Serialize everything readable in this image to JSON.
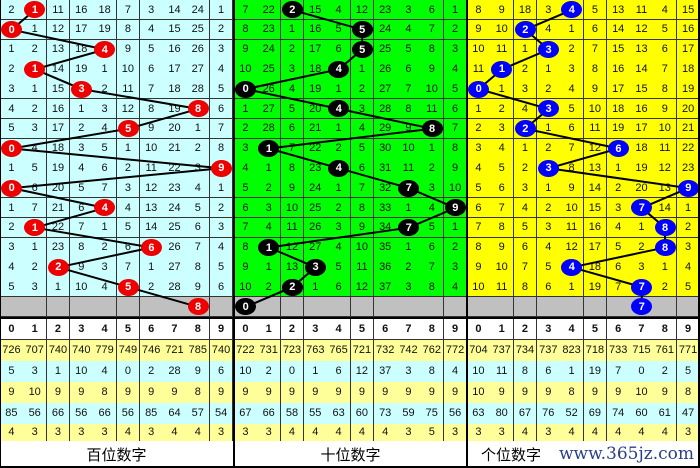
{
  "panels": [
    {
      "label": "百位数字",
      "bg": "#ccffff",
      "ball_color": "#ee0000",
      "draws": [
        1,
        0,
        4,
        1,
        3,
        8,
        5,
        0,
        9,
        0,
        4,
        1,
        6,
        2,
        5
      ],
      "next": 8,
      "rows": [
        [
          2,
          0,
          11,
          16,
          18,
          7,
          3,
          14,
          24,
          1
        ],
        [
          0,
          1,
          12,
          17,
          19,
          8,
          4,
          15,
          25,
          2
        ],
        [
          1,
          2,
          13,
          18,
          0,
          9,
          5,
          16,
          26,
          3
        ],
        [
          2,
          0,
          14,
          19,
          1,
          10,
          6,
          17,
          27,
          4
        ],
        [
          3,
          1,
          15,
          0,
          2,
          11,
          7,
          18,
          28,
          5
        ],
        [
          4,
          2,
          16,
          1,
          3,
          12,
          8,
          19,
          0,
          6
        ],
        [
          5,
          3,
          17,
          2,
          4,
          0,
          9,
          20,
          1,
          7
        ],
        [
          0,
          4,
          18,
          3,
          5,
          1,
          10,
          21,
          2,
          8
        ],
        [
          1,
          5,
          19,
          4,
          6,
          2,
          11,
          22,
          3,
          0
        ],
        [
          0,
          6,
          20,
          5,
          7,
          3,
          12,
          23,
          4,
          1
        ],
        [
          1,
          7,
          21,
          6,
          0,
          4,
          13,
          24,
          5,
          2
        ],
        [
          2,
          0,
          22,
          7,
          1,
          5,
          14,
          25,
          6,
          3
        ],
        [
          3,
          1,
          23,
          8,
          2,
          6,
          0,
          26,
          7,
          4
        ],
        [
          4,
          2,
          0,
          9,
          3,
          7,
          1,
          27,
          8,
          5
        ],
        [
          5,
          3,
          1,
          10,
          4,
          0,
          2,
          28,
          9,
          6
        ]
      ],
      "stats": [
        [
          726,
          707,
          740,
          740,
          779,
          749,
          746,
          721,
          785,
          740
        ],
        [
          5,
          3,
          1,
          10,
          4,
          0,
          2,
          28,
          9,
          6
        ],
        [
          9,
          10,
          9,
          9,
          8,
          9,
          9,
          9,
          8,
          9
        ],
        [
          85,
          56,
          66,
          56,
          66,
          56,
          85,
          64,
          57,
          54
        ],
        [
          4,
          3,
          3,
          3,
          3,
          4,
          3,
          4,
          4,
          3
        ]
      ]
    },
    {
      "label": "十位数字",
      "bg": "#00ff00",
      "ball_color": "#000000",
      "draws": [
        2,
        5,
        5,
        4,
        0,
        4,
        8,
        1,
        4,
        7,
        9,
        7,
        1,
        3,
        2
      ],
      "next": 0,
      "rows": [
        [
          7,
          22,
          0,
          15,
          4,
          12,
          23,
          3,
          6,
          1
        ],
        [
          8,
          23,
          1,
          16,
          5,
          0,
          24,
          4,
          7,
          2
        ],
        [
          9,
          24,
          2,
          17,
          6,
          0,
          25,
          5,
          8,
          3
        ],
        [
          10,
          25,
          3,
          18,
          0,
          1,
          26,
          6,
          9,
          4
        ],
        [
          0,
          26,
          4,
          19,
          1,
          2,
          27,
          7,
          10,
          5
        ],
        [
          1,
          27,
          5,
          20,
          0,
          3,
          28,
          8,
          11,
          6
        ],
        [
          2,
          28,
          6,
          21,
          1,
          4,
          29,
          9,
          0,
          7
        ],
        [
          3,
          0,
          7,
          22,
          2,
          5,
          30,
          10,
          1,
          8
        ],
        [
          4,
          1,
          8,
          23,
          0,
          6,
          31,
          11,
          2,
          9
        ],
        [
          5,
          2,
          9,
          24,
          1,
          7,
          32,
          0,
          3,
          10
        ],
        [
          6,
          3,
          10,
          25,
          2,
          8,
          33,
          1,
          4,
          0
        ],
        [
          7,
          4,
          11,
          26,
          3,
          9,
          34,
          0,
          5,
          1
        ],
        [
          8,
          0,
          12,
          27,
          4,
          10,
          35,
          1,
          6,
          2
        ],
        [
          9,
          1,
          13,
          0,
          5,
          11,
          36,
          2,
          7,
          3
        ],
        [
          10,
          2,
          0,
          1,
          6,
          12,
          37,
          3,
          8,
          4
        ]
      ],
      "stats": [
        [
          722,
          731,
          723,
          763,
          765,
          721,
          732,
          742,
          762,
          772
        ],
        [
          10,
          2,
          0,
          1,
          6,
          12,
          37,
          3,
          8,
          4
        ],
        [
          9,
          9,
          9,
          9,
          9,
          9,
          9,
          9,
          9,
          9
        ],
        [
          67,
          66,
          58,
          55,
          63,
          60,
          73,
          59,
          75,
          56
        ],
        [
          3,
          3,
          4,
          4,
          4,
          4,
          4,
          3,
          5,
          3
        ]
      ]
    },
    {
      "label": "个位数字",
      "bg": "#ffff00",
      "ball_color": "#0000ff",
      "draws": [
        4,
        2,
        3,
        1,
        0,
        3,
        2,
        6,
        3,
        9,
        7,
        8,
        8,
        4,
        7
      ],
      "next": 7,
      "rows": [
        [
          8,
          9,
          18,
          3,
          0,
          5,
          13,
          11,
          4,
          15
        ],
        [
          9,
          10,
          0,
          4,
          1,
          6,
          14,
          12,
          5,
          16
        ],
        [
          10,
          11,
          1,
          0,
          2,
          7,
          15,
          13,
          6,
          17
        ],
        [
          11,
          0,
          2,
          1,
          3,
          8,
          16,
          14,
          7,
          18
        ],
        [
          0,
          1,
          3,
          2,
          4,
          9,
          17,
          15,
          8,
          19
        ],
        [
          1,
          2,
          4,
          0,
          5,
          10,
          18,
          16,
          9,
          20
        ],
        [
          2,
          3,
          0,
          1,
          6,
          11,
          19,
          17,
          10,
          21
        ],
        [
          3,
          4,
          1,
          2,
          7,
          12,
          0,
          18,
          11,
          22
        ],
        [
          4,
          5,
          2,
          0,
          8,
          13,
          1,
          19,
          12,
          23
        ],
        [
          5,
          6,
          3,
          1,
          9,
          14,
          2,
          20,
          13,
          0
        ],
        [
          6,
          7,
          4,
          2,
          10,
          15,
          3,
          0,
          14,
          1
        ],
        [
          7,
          8,
          5,
          3,
          11,
          16,
          4,
          1,
          0,
          2
        ],
        [
          8,
          9,
          6,
          4,
          12,
          17,
          5,
          2,
          0,
          3
        ],
        [
          9,
          10,
          7,
          5,
          0,
          18,
          6,
          3,
          1,
          4
        ],
        [
          10,
          11,
          8,
          6,
          1,
          19,
          7,
          0,
          2,
          5
        ]
      ],
      "stats": [
        [
          704,
          737,
          734,
          737,
          823,
          718,
          733,
          715,
          761,
          771
        ],
        [
          10,
          11,
          8,
          6,
          1,
          19,
          7,
          0,
          2,
          5
        ],
        [
          10,
          9,
          9,
          9,
          8,
          9,
          9,
          10,
          9,
          8
        ],
        [
          63,
          80,
          67,
          76,
          52,
          69,
          74,
          60,
          61,
          47
        ],
        [
          3,
          3,
          4,
          3,
          4,
          4,
          4,
          4,
          4,
          3
        ]
      ]
    }
  ],
  "digits": [
    "0",
    "1",
    "2",
    "3",
    "4",
    "5",
    "6",
    "7",
    "8",
    "9"
  ],
  "colors": {
    "gray_row": "#c0c0c0",
    "stat_yellow": "#ffff99",
    "stat_cyan": "#ccffff"
  },
  "watermark": "www.365jz.com"
}
